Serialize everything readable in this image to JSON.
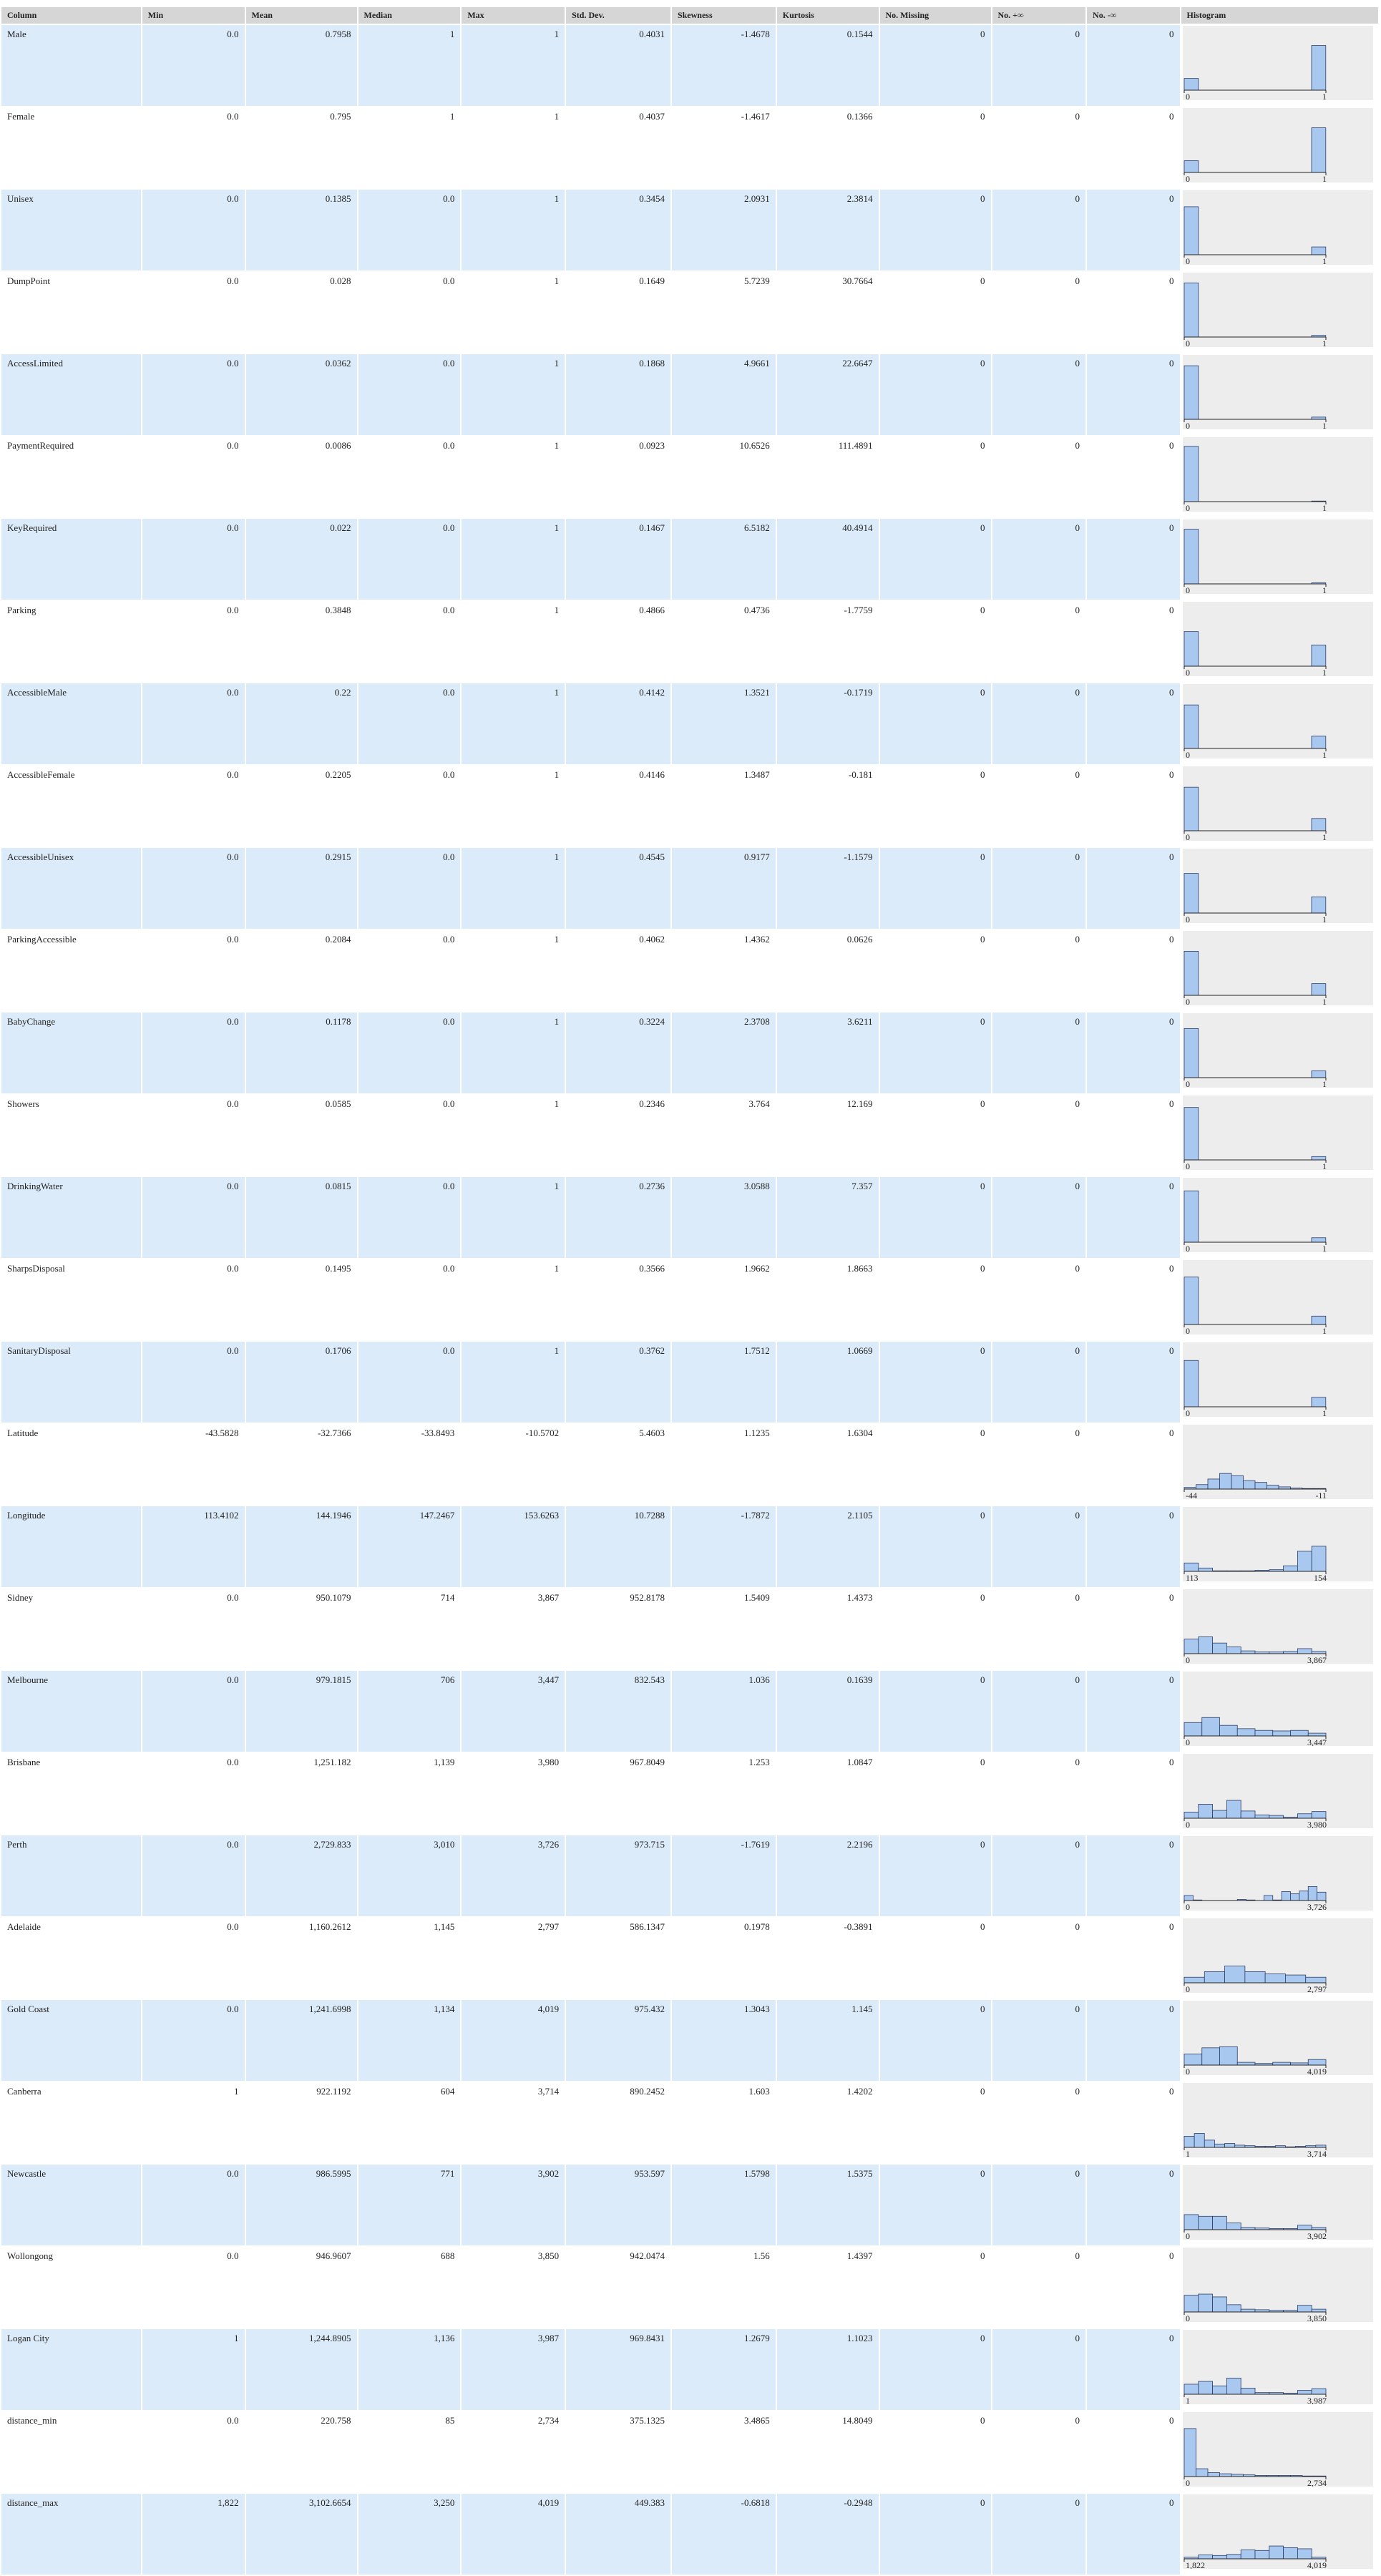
{
  "headers": [
    "Column",
    "Min",
    "Mean",
    "Median",
    "Max",
    "Std. Dev.",
    "Skewness",
    "Kurtosis",
    "No. Missing",
    "No. +∞",
    "No. -∞",
    "Histogram"
  ],
  "bar_color": "#a9c8f0",
  "rows": [
    {
      "name": "Male",
      "min": "0.0",
      "mean": "0.7958",
      "median": "1",
      "max": "1",
      "std": "0.4031",
      "skew": "-1.4678",
      "kurt": "0.1544",
      "missing": "0",
      "pinf": "0",
      "ninf": "0",
      "hist": {
        "lo": "0",
        "hi": "1",
        "bars": [
          0.21,
          0,
          0,
          0,
          0,
          0,
          0,
          0,
          0,
          0.8
        ]
      }
    },
    {
      "name": "Female",
      "min": "0.0",
      "mean": "0.795",
      "median": "1",
      "max": "1",
      "std": "0.4037",
      "skew": "-1.4617",
      "kurt": "0.1366",
      "missing": "0",
      "pinf": "0",
      "ninf": "0",
      "hist": {
        "lo": "0",
        "hi": "1",
        "bars": [
          0.21,
          0,
          0,
          0,
          0,
          0,
          0,
          0,
          0,
          0.8
        ]
      }
    },
    {
      "name": "Unisex",
      "min": "0.0",
      "mean": "0.1385",
      "median": "0.0",
      "max": "1",
      "std": "0.3454",
      "skew": "2.0931",
      "kurt": "2.3814",
      "missing": "0",
      "pinf": "0",
      "ninf": "0",
      "hist": {
        "lo": "0",
        "hi": "1",
        "bars": [
          0.86,
          0,
          0,
          0,
          0,
          0,
          0,
          0,
          0,
          0.14
        ]
      }
    },
    {
      "name": "DumpPoint",
      "min": "0.0",
      "mean": "0.028",
      "median": "0.0",
      "max": "1",
      "std": "0.1649",
      "skew": "5.7239",
      "kurt": "30.7664",
      "missing": "0",
      "pinf": "0",
      "ninf": "0",
      "hist": {
        "lo": "0",
        "hi": "1",
        "bars": [
          0.97,
          0,
          0,
          0,
          0,
          0,
          0,
          0,
          0,
          0.03
        ]
      }
    },
    {
      "name": "AccessLimited",
      "min": "0.0",
      "mean": "0.0362",
      "median": "0.0",
      "max": "1",
      "std": "0.1868",
      "skew": "4.9661",
      "kurt": "22.6647",
      "missing": "0",
      "pinf": "0",
      "ninf": "0",
      "hist": {
        "lo": "0",
        "hi": "1",
        "bars": [
          0.96,
          0,
          0,
          0,
          0,
          0,
          0,
          0,
          0,
          0.04
        ]
      }
    },
    {
      "name": "PaymentRequired",
      "min": "0.0",
      "mean": "0.0086",
      "median": "0.0",
      "max": "1",
      "std": "0.0923",
      "skew": "10.6526",
      "kurt": "111.4891",
      "missing": "0",
      "pinf": "0",
      "ninf": "0",
      "hist": {
        "lo": "0",
        "hi": "1",
        "bars": [
          0.99,
          0,
          0,
          0,
          0,
          0,
          0,
          0,
          0,
          0.01
        ]
      }
    },
    {
      "name": "KeyRequired",
      "min": "0.0",
      "mean": "0.022",
      "median": "0.0",
      "max": "1",
      "std": "0.1467",
      "skew": "6.5182",
      "kurt": "40.4914",
      "missing": "0",
      "pinf": "0",
      "ninf": "0",
      "hist": {
        "lo": "0",
        "hi": "1",
        "bars": [
          0.98,
          0,
          0,
          0,
          0,
          0,
          0,
          0,
          0,
          0.02
        ]
      }
    },
    {
      "name": "Parking",
      "min": "0.0",
      "mean": "0.3848",
      "median": "0.0",
      "max": "1",
      "std": "0.4866",
      "skew": "0.4736",
      "kurt": "-1.7759",
      "missing": "0",
      "pinf": "0",
      "ninf": "0",
      "hist": {
        "lo": "0",
        "hi": "1",
        "bars": [
          0.62,
          0,
          0,
          0,
          0,
          0,
          0,
          0,
          0,
          0.38
        ]
      }
    },
    {
      "name": "AccessibleMale",
      "min": "0.0",
      "mean": "0.22",
      "median": "0.0",
      "max": "1",
      "std": "0.4142",
      "skew": "1.3521",
      "kurt": "-0.1719",
      "missing": "0",
      "pinf": "0",
      "ninf": "0",
      "hist": {
        "lo": "0",
        "hi": "1",
        "bars": [
          0.78,
          0,
          0,
          0,
          0,
          0,
          0,
          0,
          0,
          0.22
        ]
      }
    },
    {
      "name": "AccessibleFemale",
      "min": "0.0",
      "mean": "0.2205",
      "median": "0.0",
      "max": "1",
      "std": "0.4146",
      "skew": "1.3487",
      "kurt": "-0.181",
      "missing": "0",
      "pinf": "0",
      "ninf": "0",
      "hist": {
        "lo": "0",
        "hi": "1",
        "bars": [
          0.78,
          0,
          0,
          0,
          0,
          0,
          0,
          0,
          0,
          0.22
        ]
      }
    },
    {
      "name": "AccessibleUnisex",
      "min": "0.0",
      "mean": "0.2915",
      "median": "0.0",
      "max": "1",
      "std": "0.4545",
      "skew": "0.9177",
      "kurt": "-1.1579",
      "missing": "0",
      "pinf": "0",
      "ninf": "0",
      "hist": {
        "lo": "0",
        "hi": "1",
        "bars": [
          0.71,
          0,
          0,
          0,
          0,
          0,
          0,
          0,
          0,
          0.29
        ]
      }
    },
    {
      "name": "ParkingAccessible",
      "min": "0.0",
      "mean": "0.2084",
      "median": "0.0",
      "max": "1",
      "std": "0.4062",
      "skew": "1.4362",
      "kurt": "0.0626",
      "missing": "0",
      "pinf": "0",
      "ninf": "0",
      "hist": {
        "lo": "0",
        "hi": "1",
        "bars": [
          0.79,
          0,
          0,
          0,
          0,
          0,
          0,
          0,
          0,
          0.21
        ]
      }
    },
    {
      "name": "BabyChange",
      "min": "0.0",
      "mean": "0.1178",
      "median": "0.0",
      "max": "1",
      "std": "0.3224",
      "skew": "2.3708",
      "kurt": "3.6211",
      "missing": "0",
      "pinf": "0",
      "ninf": "0",
      "hist": {
        "lo": "0",
        "hi": "1",
        "bars": [
          0.88,
          0,
          0,
          0,
          0,
          0,
          0,
          0,
          0,
          0.12
        ]
      }
    },
    {
      "name": "Showers",
      "min": "0.0",
      "mean": "0.0585",
      "median": "0.0",
      "max": "1",
      "std": "0.2346",
      "skew": "3.764",
      "kurt": "12.169",
      "missing": "0",
      "pinf": "0",
      "ninf": "0",
      "hist": {
        "lo": "0",
        "hi": "1",
        "bars": [
          0.94,
          0,
          0,
          0,
          0,
          0,
          0,
          0,
          0,
          0.06
        ]
      }
    },
    {
      "name": "DrinkingWater",
      "min": "0.0",
      "mean": "0.0815",
      "median": "0.0",
      "max": "1",
      "std": "0.2736",
      "skew": "3.0588",
      "kurt": "7.357",
      "missing": "0",
      "pinf": "0",
      "ninf": "0",
      "hist": {
        "lo": "0",
        "hi": "1",
        "bars": [
          0.92,
          0,
          0,
          0,
          0,
          0,
          0,
          0,
          0,
          0.08
        ]
      }
    },
    {
      "name": "SharpsDisposal",
      "min": "0.0",
      "mean": "0.1495",
      "median": "0.0",
      "max": "1",
      "std": "0.3566",
      "skew": "1.9662",
      "kurt": "1.8663",
      "missing": "0",
      "pinf": "0",
      "ninf": "0",
      "hist": {
        "lo": "0",
        "hi": "1",
        "bars": [
          0.85,
          0,
          0,
          0,
          0,
          0,
          0,
          0,
          0,
          0.15
        ]
      }
    },
    {
      "name": "SanitaryDisposal",
      "min": "0.0",
      "mean": "0.1706",
      "median": "0.0",
      "max": "1",
      "std": "0.3762",
      "skew": "1.7512",
      "kurt": "1.0669",
      "missing": "0",
      "pinf": "0",
      "ninf": "0",
      "hist": {
        "lo": "0",
        "hi": "1",
        "bars": [
          0.83,
          0,
          0,
          0,
          0,
          0,
          0,
          0,
          0,
          0.17
        ]
      }
    },
    {
      "name": "Latitude",
      "min": "-43.5828",
      "mean": "-32.7366",
      "median": "-33.8493",
      "max": "-10.5702",
      "std": "5.4603",
      "skew": "1.1235",
      "kurt": "1.6304",
      "missing": "0",
      "pinf": "0",
      "ninf": "0",
      "hist": {
        "lo": "-44",
        "hi": "-11",
        "bars": [
          0.03,
          0.08,
          0.18,
          0.28,
          0.24,
          0.15,
          0.12,
          0.07,
          0.04,
          0.02,
          0.01,
          0.01
        ]
      }
    },
    {
      "name": "Longitude",
      "min": "113.4102",
      "mean": "144.1946",
      "median": "147.2467",
      "max": "153.6263",
      "std": "10.7288",
      "skew": "-1.7872",
      "kurt": "2.1105",
      "missing": "0",
      "pinf": "0",
      "ninf": "0",
      "hist": {
        "lo": "113",
        "hi": "154",
        "bars": [
          0.15,
          0.06,
          0.01,
          0.01,
          0.01,
          0.02,
          0.03,
          0.1,
          0.36,
          0.45
        ]
      }
    },
    {
      "name": "Sidney",
      "min": "0.0",
      "mean": "950.1079",
      "median": "714",
      "max": "3,867",
      "std": "952.8178",
      "skew": "1.5409",
      "kurt": "1.4373",
      "missing": "0",
      "pinf": "0",
      "ninf": "0",
      "hist": {
        "lo": "0",
        "hi": "3,867",
        "bars": [
          0.26,
          0.3,
          0.19,
          0.12,
          0.05,
          0.03,
          0.03,
          0.04,
          0.09,
          0.04
        ]
      }
    },
    {
      "name": "Melbourne",
      "min": "0.0",
      "mean": "979.1815",
      "median": "706",
      "max": "3,447",
      "std": "832.543",
      "skew": "1.036",
      "kurt": "0.1639",
      "missing": "0",
      "pinf": "0",
      "ninf": "0",
      "hist": {
        "lo": "0",
        "hi": "3,447",
        "bars": [
          0.24,
          0.33,
          0.19,
          0.13,
          0.1,
          0.09,
          0.1,
          0.05
        ]
      }
    },
    {
      "name": "Brisbane",
      "min": "0.0",
      "mean": "1,251.182",
      "median": "1,139",
      "max": "3,980",
      "std": "967.8049",
      "skew": "1.253",
      "kurt": "1.0847",
      "missing": "0",
      "pinf": "0",
      "ninf": "0",
      "hist": {
        "lo": "0",
        "hi": "3,980",
        "bars": [
          0.11,
          0.25,
          0.14,
          0.32,
          0.13,
          0.06,
          0.05,
          0.02,
          0.08,
          0.12
        ]
      }
    },
    {
      "name": "Perth",
      "min": "0.0",
      "mean": "2,729.833",
      "median": "3,010",
      "max": "3,726",
      "std": "973.715",
      "skew": "-1.7619",
      "kurt": "2.2196",
      "missing": "0",
      "pinf": "0",
      "ninf": "0",
      "hist": {
        "lo": "0",
        "hi": "3,726",
        "bars": [
          0.09,
          0.01,
          0.0,
          0.0,
          0.0,
          0.0,
          0.02,
          0.01,
          0.0,
          0.09,
          0.01,
          0.16,
          0.12,
          0.17,
          0.25,
          0.15
        ]
      }
    },
    {
      "name": "Adelaide",
      "min": "0.0",
      "mean": "1,160.2612",
      "median": "1,145",
      "max": "2,797",
      "std": "586.1347",
      "skew": "0.1978",
      "kurt": "-0.3891",
      "missing": "0",
      "pinf": "0",
      "ninf": "0",
      "hist": {
        "lo": "0",
        "hi": "2,797",
        "bars": [
          0.1,
          0.2,
          0.3,
          0.2,
          0.16,
          0.14,
          0.1
        ]
      }
    },
    {
      "name": "Gold Coast",
      "min": "0.0",
      "mean": "1,241.6998",
      "median": "1,134",
      "max": "4,019",
      "std": "975.432",
      "skew": "1.3043",
      "kurt": "1.145",
      "missing": "0",
      "pinf": "0",
      "ninf": "0",
      "hist": {
        "lo": "0",
        "hi": "4,019",
        "bars": [
          0.2,
          0.31,
          0.33,
          0.05,
          0.03,
          0.05,
          0.04,
          0.1
        ]
      }
    },
    {
      "name": "Canberra",
      "min": "1",
      "mean": "922.1192",
      "median": "604",
      "max": "3,714",
      "std": "890.2452",
      "skew": "1.603",
      "kurt": "1.4202",
      "missing": "0",
      "pinf": "0",
      "ninf": "0",
      "hist": {
        "lo": "1",
        "hi": "3,714",
        "bars": [
          0.2,
          0.25,
          0.13,
          0.06,
          0.07,
          0.04,
          0.03,
          0.02,
          0.02,
          0.03,
          0.01,
          0.02,
          0.03,
          0.04
        ]
      }
    },
    {
      "name": "Newcastle",
      "min": "0.0",
      "mean": "986.5995",
      "median": "771",
      "max": "3,902",
      "std": "953.597",
      "skew": "1.5798",
      "kurt": "1.5375",
      "missing": "0",
      "pinf": "0",
      "ninf": "0",
      "hist": {
        "lo": "0",
        "hi": "3,902",
        "bars": [
          0.27,
          0.24,
          0.24,
          0.12,
          0.04,
          0.03,
          0.02,
          0.02,
          0.08,
          0.04
        ]
      }
    },
    {
      "name": "Wollongong",
      "min": "0.0",
      "mean": "946.9607",
      "median": "688",
      "max": "3,850",
      "std": "942.0474",
      "skew": "1.56",
      "kurt": "1.4397",
      "missing": "0",
      "pinf": "0",
      "ninf": "0",
      "hist": {
        "lo": "0",
        "hi": "3,850",
        "bars": [
          0.3,
          0.32,
          0.27,
          0.13,
          0.05,
          0.04,
          0.03,
          0.03,
          0.12,
          0.05
        ]
      }
    },
    {
      "name": "Logan City",
      "min": "1",
      "mean": "1,244.8905",
      "median": "1,136",
      "max": "3,987",
      "std": "969.8431",
      "skew": "1.2679",
      "kurt": "1.1023",
      "missing": "0",
      "pinf": "0",
      "ninf": "0",
      "hist": {
        "lo": "1",
        "hi": "3,987",
        "bars": [
          0.18,
          0.23,
          0.15,
          0.29,
          0.11,
          0.03,
          0.03,
          0.02,
          0.07,
          0.1
        ]
      }
    },
    {
      "name": "distance_min",
      "min": "0.0",
      "mean": "220.758",
      "median": "85",
      "max": "2,734",
      "std": "375.1325",
      "skew": "3.4865",
      "kurt": "14.8049",
      "missing": "0",
      "pinf": "0",
      "ninf": "0",
      "hist": {
        "lo": "0",
        "hi": "2,734",
        "bars": [
          0.86,
          0.14,
          0.07,
          0.05,
          0.04,
          0.03,
          0.02,
          0.02,
          0.02,
          0.02,
          0.01,
          0.01
        ]
      }
    },
    {
      "name": "distance_max",
      "min": "1,822",
      "mean": "3,102.6654",
      "median": "3,250",
      "max": "4,019",
      "std": "449.383",
      "skew": "-0.6818",
      "kurt": "-0.2948",
      "missing": "0",
      "pinf": "0",
      "ninf": "0",
      "hist": {
        "lo": "1,822",
        "hi": "4,019",
        "bars": [
          0.03,
          0.07,
          0.06,
          0.08,
          0.16,
          0.15,
          0.23,
          0.2,
          0.18,
          0.03
        ]
      }
    }
  ]
}
